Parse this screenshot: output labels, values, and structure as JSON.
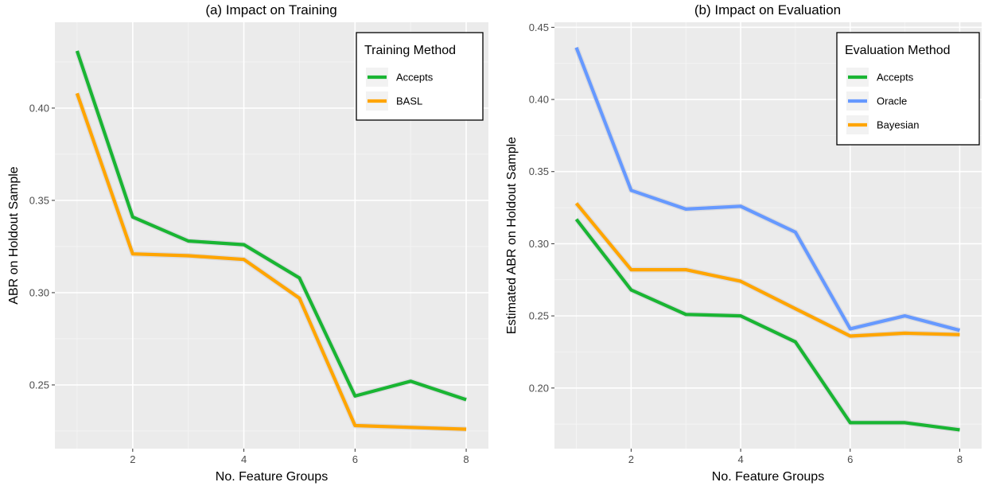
{
  "chart_data": [
    {
      "type": "line",
      "title": "(a) Impact on Training",
      "xlabel": "No. Feature Groups",
      "ylabel": "ABR on Holdout Sample",
      "xlim": [
        0.6,
        8.4
      ],
      "ylim": [
        0.2155,
        0.4465
      ],
      "x": [
        1,
        2,
        3,
        4,
        5,
        6,
        7,
        8
      ],
      "x_ticks": [
        2,
        4,
        6,
        8
      ],
      "x_tick_labels": [
        "2",
        "4",
        "6",
        "8"
      ],
      "y_ticks": [
        0.25,
        0.3,
        0.35,
        0.4
      ],
      "y_tick_labels": [
        "0.25",
        "0.30",
        "0.35",
        "0.40"
      ],
      "grid": true,
      "background": "#ebebeb",
      "legend": {
        "title": "Training Method",
        "position": "top-right"
      },
      "series": [
        {
          "name": "Accepts",
          "color": "#1ab533",
          "values": [
            0.431,
            0.341,
            0.328,
            0.326,
            0.308,
            0.244,
            0.252,
            0.242
          ]
        },
        {
          "name": "BASL",
          "color": "#ffa500",
          "values": [
            0.408,
            0.321,
            0.32,
            0.318,
            0.297,
            0.228,
            0.227,
            0.226
          ]
        }
      ]
    },
    {
      "type": "line",
      "title": "(b) Impact on Evaluation",
      "xlabel": "No. Feature Groups",
      "ylabel": "Estimated ABR on Holdout Sample",
      "xlim": [
        0.6,
        8.4
      ],
      "ylim": [
        0.158,
        0.4535
      ],
      "x": [
        1,
        2,
        3,
        4,
        5,
        6,
        7,
        8
      ],
      "x_ticks": [
        2,
        4,
        6,
        8
      ],
      "x_tick_labels": [
        "2",
        "4",
        "6",
        "8"
      ],
      "y_ticks": [
        0.2,
        0.25,
        0.3,
        0.35,
        0.4,
        0.45
      ],
      "y_tick_labels": [
        "0.20",
        "0.25",
        "0.30",
        "0.35",
        "0.40",
        "0.45"
      ],
      "grid": true,
      "background": "#ebebeb",
      "legend": {
        "title": "Evaluation Method",
        "position": "top-right"
      },
      "series": [
        {
          "name": "Accepts",
          "color": "#1ab533",
          "values": [
            0.317,
            0.268,
            0.251,
            0.25,
            0.232,
            0.176,
            0.176,
            0.171
          ]
        },
        {
          "name": "Oracle",
          "color": "#6699ff",
          "values": [
            0.436,
            0.337,
            0.324,
            0.326,
            0.308,
            0.241,
            0.25,
            0.24
          ]
        },
        {
          "name": "Bayesian",
          "color": "#ffa500",
          "values": [
            0.328,
            0.282,
            0.282,
            0.274,
            0.255,
            0.236,
            0.238,
            0.237
          ]
        }
      ]
    }
  ]
}
